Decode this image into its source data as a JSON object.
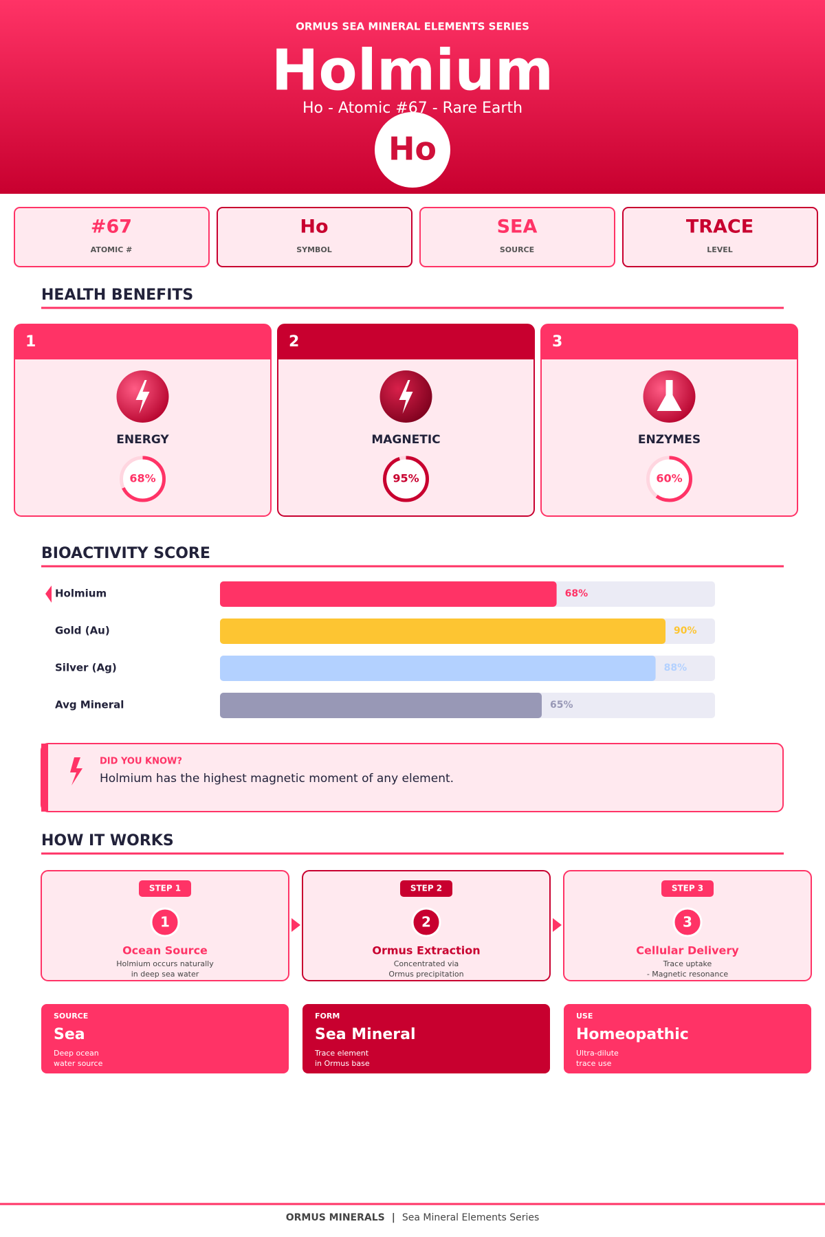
{
  "header": {
    "series": "ORMUS SEA MINERAL ELEMENTS SERIES",
    "title": "Holmium",
    "subtitle": "Ho  -  Atomic #67  -  Rare Earth",
    "symbol": "Ho"
  },
  "stats": [
    {
      "value": "#67",
      "label": "ATOMIC #"
    },
    {
      "value": "Ho",
      "label": "SYMBOL"
    },
    {
      "value": "SEA",
      "label": "SOURCE"
    },
    {
      "value": "TRACE",
      "label": "LEVEL"
    }
  ],
  "health_benefits": {
    "title": "HEALTH BENEFITS",
    "range": [
      0,
      100
    ],
    "items": [
      {
        "number": "1",
        "name": "ENERGY",
        "value": 68,
        "value_label": "68%",
        "color": "#ff3366"
      },
      {
        "number": "2",
        "name": "MAGNETIC",
        "value": 95,
        "value_label": "95%",
        "color": "#c8002f"
      },
      {
        "number": "3",
        "name": "ENZYMES",
        "value": 60,
        "value_label": "60%",
        "color": "#ff3366"
      }
    ]
  },
  "bioactivity": {
    "title": "BIOACTIVITY SCORE",
    "xlim": [
      0,
      100
    ],
    "categories": [
      "Holmium",
      "Gold (Au)",
      "Silver (Ag)",
      "Avg Mineral"
    ],
    "values": [
      68,
      90,
      88,
      65
    ],
    "value_labels": [
      "68%",
      "90%",
      "88%",
      "65%"
    ],
    "colors": [
      "#ff3366",
      "#fdc532",
      "#b3d1ff",
      "#9898b6"
    ]
  },
  "fact": {
    "title": "DID YOU KNOW?",
    "text": "Holmium has the highest magnetic moment of any element."
  },
  "how_it_works": {
    "title": "HOW IT WORKS",
    "steps": [
      {
        "badge": "STEP 1",
        "number": "1",
        "title": "Ocean Source",
        "lines": [
          "Holmium occurs naturally",
          "in deep sea water"
        ]
      },
      {
        "badge": "STEP 2",
        "number": "2",
        "title": "Ormus Extraction",
        "lines": [
          "Concentrated via",
          "Ormus precipitation"
        ]
      },
      {
        "badge": "STEP 3",
        "number": "3",
        "title": "Cellular Delivery",
        "lines": [
          "Trace uptake",
          "- Magnetic resonance"
        ]
      }
    ]
  },
  "info_cards": [
    {
      "label": "SOURCE",
      "value": "Sea",
      "lines": [
        "Deep ocean",
        "water source"
      ]
    },
    {
      "label": "FORM",
      "value": "Sea Mineral",
      "lines": [
        "Trace element",
        "in Ormus base"
      ]
    },
    {
      "label": "USE",
      "value": "Homeopathic",
      "lines": [
        "Ultra-dilute",
        "trace use"
      ]
    }
  ],
  "footer": {
    "brand": "ORMUS MINERALS",
    "separator": "|",
    "text": "Sea Mineral Elements Series"
  }
}
